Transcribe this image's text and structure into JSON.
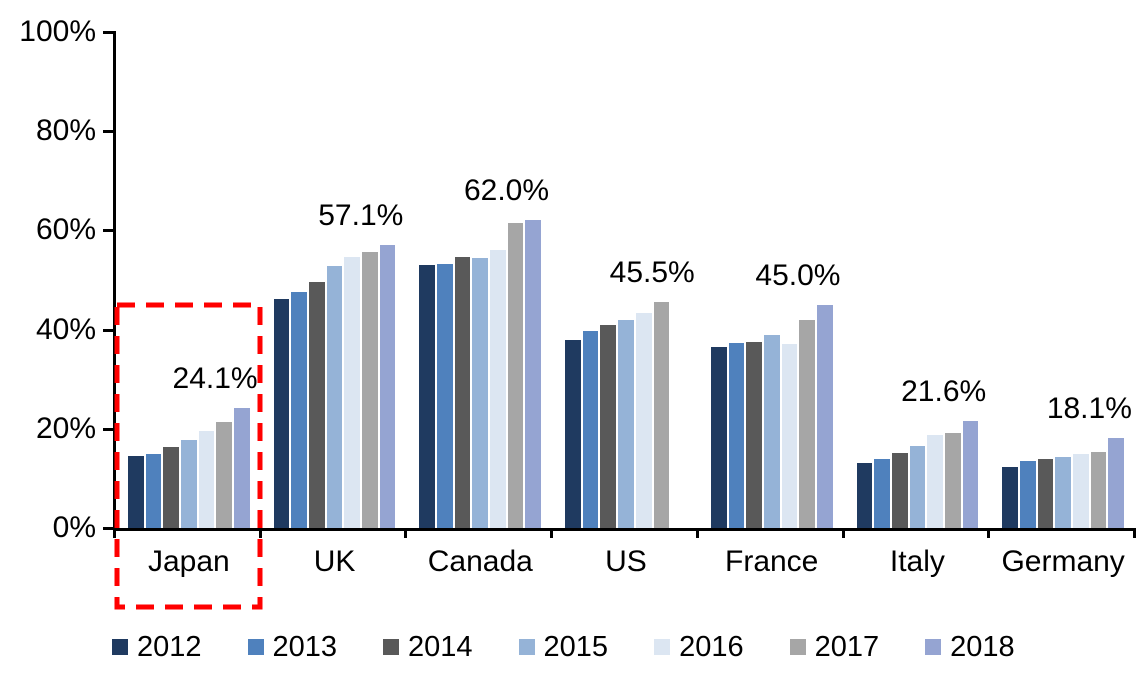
{
  "chart_data": {
    "type": "bar",
    "title": "",
    "xlabel": "",
    "ylabel": "",
    "categories": [
      "Japan",
      "UK",
      "Canada",
      "US",
      "France",
      "Italy",
      "Germany"
    ],
    "series": [
      {
        "name": "2012",
        "color": "#1F3A60",
        "values": [
          14.6,
          46.2,
          53.0,
          38.0,
          36.4,
          13.2,
          12.3
        ]
      },
      {
        "name": "2013",
        "color": "#4F81BD",
        "values": [
          14.9,
          47.6,
          53.3,
          39.8,
          37.4,
          14.0,
          13.6
        ]
      },
      {
        "name": "2014",
        "color": "#595959",
        "values": [
          16.3,
          49.6,
          54.7,
          41.0,
          37.5,
          15.2,
          14.0
        ]
      },
      {
        "name": "2015",
        "color": "#95B3D7",
        "values": [
          17.8,
          52.8,
          54.5,
          42.0,
          39.0,
          16.5,
          14.4
        ]
      },
      {
        "name": "2016",
        "color": "#DCE6F2",
        "values": [
          19.6,
          54.6,
          56.0,
          43.4,
          37.2,
          18.8,
          15.0
        ]
      },
      {
        "name": "2017",
        "color": "#A6A6A6",
        "values": [
          21.3,
          55.6,
          61.4,
          45.5,
          42.0,
          19.2,
          15.4
        ]
      },
      {
        "name": "2018",
        "color": "#95A4D2",
        "values": [
          24.1,
          57.1,
          62.0,
          null,
          45.0,
          21.6,
          18.1
        ]
      }
    ],
    "data_labels": [
      "24.1%",
      "57.1%",
      "62.0%",
      "45.5%",
      "45.0%",
      "21.6%",
      "18.1%"
    ],
    "yticks": [
      "0%",
      "20%",
      "40%",
      "60%",
      "80%",
      "100%"
    ],
    "ylim": [
      0,
      100
    ],
    "grid": false,
    "legend_position": "bottom",
    "highlight": {
      "category": "Japan",
      "style": "red-dashed-box",
      "color": "#FF0000"
    }
  }
}
